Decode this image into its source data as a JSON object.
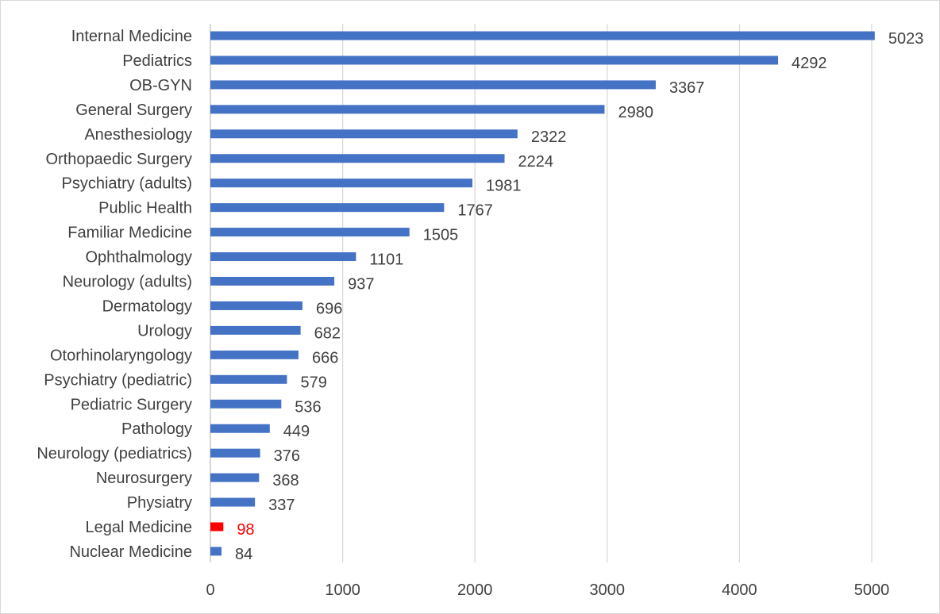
{
  "chart_data": {
    "type": "bar",
    "orientation": "horizontal",
    "title": "",
    "xlabel": "",
    "ylabel": "",
    "xlim": [
      0,
      5000
    ],
    "xticks": [
      0,
      1000,
      2000,
      3000,
      4000,
      5000
    ],
    "grid": "vertical",
    "legend": "none",
    "default_color": "#4472C4",
    "default_label_color": "#404040",
    "highlight_color": "#FF0000",
    "categories": [
      "Internal Medicine",
      "Pediatrics",
      "OB-GYN",
      "General Surgery",
      "Anesthesiology",
      "Orthopaedic Surgery",
      "Psychiatry (adults)",
      "Public Health",
      "Familiar Medicine",
      "Ophthalmology",
      "Neurology (adults)",
      "Dermatology",
      "Urology",
      "Otorhinolaryngology",
      "Psychiatry (pediatric)",
      "Pediatric Surgery",
      "Pathology",
      "Neurology (pediatrics)",
      "Neurosurgery",
      "Physiatry",
      "Legal Medicine",
      "Nuclear Medicine"
    ],
    "values": [
      5023,
      4292,
      3367,
      2980,
      2322,
      2224,
      1981,
      1767,
      1505,
      1101,
      937,
      696,
      682,
      666,
      579,
      536,
      449,
      376,
      368,
      337,
      98,
      84
    ],
    "highlighted": [
      "Legal Medicine"
    ]
  }
}
